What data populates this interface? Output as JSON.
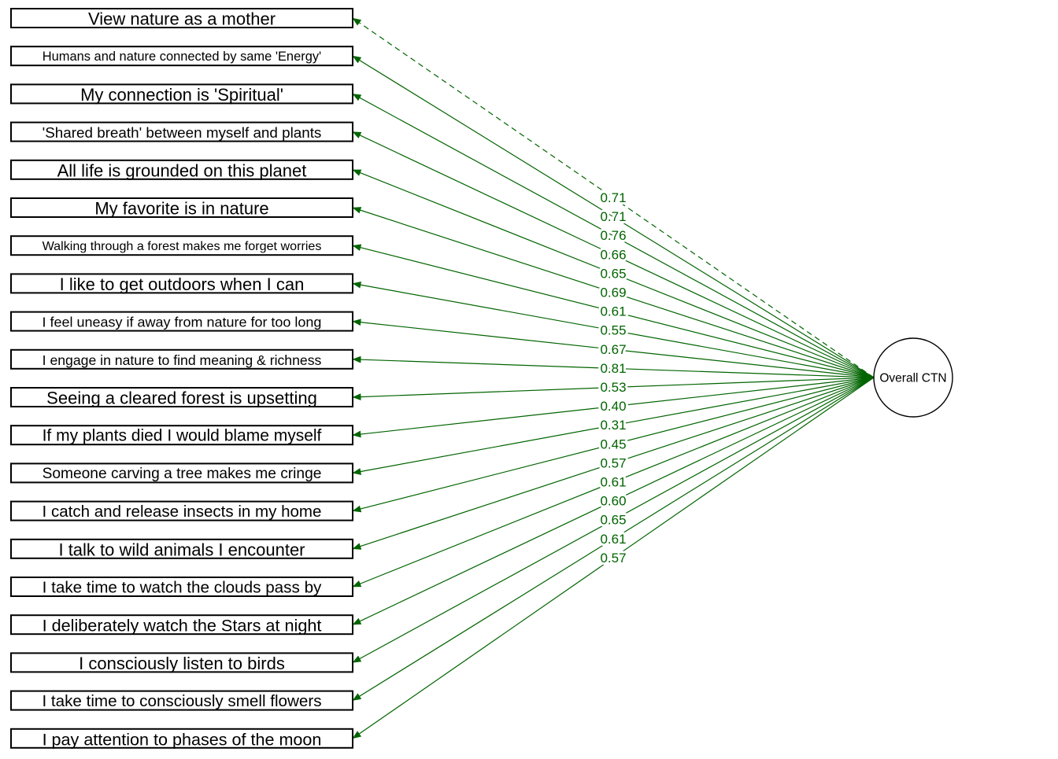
{
  "diagram": {
    "type": "factor-model-path-diagram",
    "edge_color": "#006400",
    "box_border_color": "#000000",
    "factor": {
      "label": "Overall CTN",
      "shape": "circle"
    },
    "items": [
      {
        "label": "View nature as a mother",
        "loading": "0.71",
        "edge_style": "dashed"
      },
      {
        "label": "Humans and nature connected by same 'Energy'",
        "loading": "0.71",
        "edge_style": "solid"
      },
      {
        "label": "My connection is 'Spiritual'",
        "loading": "0.76",
        "edge_style": "solid"
      },
      {
        "label": "'Shared breath' between myself and plants",
        "loading": "0.66",
        "edge_style": "solid"
      },
      {
        "label": "All life is grounded on this planet",
        "loading": "0.65",
        "edge_style": "solid"
      },
      {
        "label": "My favorite is in nature",
        "loading": "0.69",
        "edge_style": "solid"
      },
      {
        "label": "Walking through a forest makes me forget worries",
        "loading": "0.61",
        "edge_style": "solid"
      },
      {
        "label": "I like to get outdoors when I can",
        "loading": "0.55",
        "edge_style": "solid"
      },
      {
        "label": "I feel uneasy if away from nature for too long",
        "loading": "0.67",
        "edge_style": "solid"
      },
      {
        "label": "I engage in nature to find meaning & richness",
        "loading": "0.81",
        "edge_style": "solid"
      },
      {
        "label": "Seeing a cleared forest is upsetting",
        "loading": "0.53",
        "edge_style": "solid"
      },
      {
        "label": "If my plants died I would blame myself",
        "loading": "0.40",
        "edge_style": "solid"
      },
      {
        "label": "Someone carving a tree makes me cringe",
        "loading": "0.31",
        "edge_style": "solid"
      },
      {
        "label": "I catch and release insects in my home",
        "loading": "0.45",
        "edge_style": "solid"
      },
      {
        "label": "I talk to wild animals I encounter",
        "loading": "0.57",
        "edge_style": "solid"
      },
      {
        "label": "I take time to watch the clouds pass by",
        "loading": "0.61",
        "edge_style": "solid"
      },
      {
        "label": "I deliberately watch the Stars at night",
        "loading": "0.60",
        "edge_style": "solid"
      },
      {
        "label": "I consciously listen to birds",
        "loading": "0.65",
        "edge_style": "solid"
      },
      {
        "label": "I take time to consciously smell flowers",
        "loading": "0.61",
        "edge_style": "solid"
      },
      {
        "label": "I pay attention to phases of the moon",
        "loading": "0.57",
        "edge_style": "solid"
      }
    ]
  }
}
